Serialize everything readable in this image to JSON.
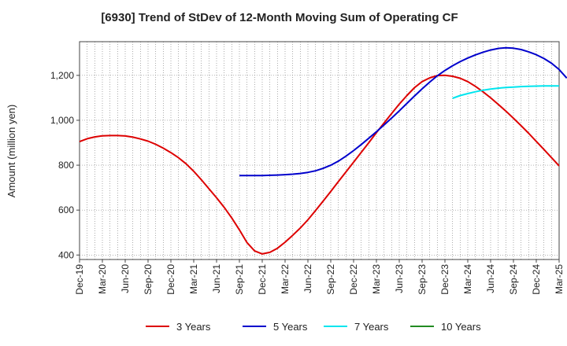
{
  "chart_data": {
    "type": "line",
    "title": "[6930]  Trend of StDev of 12-Month Moving Sum of Operating CF",
    "xlabel": "",
    "ylabel": "Amount (million yen)",
    "ylim": [
      380,
      1350
    ],
    "yticks": [
      400,
      600,
      800,
      1000,
      1200
    ],
    "ytick_labels": [
      "400",
      "600",
      "800",
      "1,000",
      "1,200"
    ],
    "x_start": "Dec-19",
    "x_end": "Mar-25",
    "xtick_labels": [
      "Dec-19",
      "Mar-20",
      "Jun-20",
      "Sep-20",
      "Dec-20",
      "Mar-21",
      "Jun-21",
      "Sep-21",
      "Dec-21",
      "Mar-22",
      "Jun-22",
      "Sep-22",
      "Dec-22",
      "Mar-23",
      "Jun-23",
      "Sep-23",
      "Dec-23",
      "Mar-24",
      "Jun-24",
      "Sep-24",
      "Dec-24",
      "Mar-25"
    ],
    "grid": true,
    "legend_position": "bottom",
    "series": [
      {
        "name": "3 Years",
        "color": "#dd0000",
        "start_index": 0,
        "values": [
          905,
          918,
          926,
          931,
          932,
          932,
          930,
          925,
          917,
          907,
          893,
          876,
          856,
          833,
          806,
          773,
          735,
          695,
          655,
          612,
          565,
          512,
          455,
          418,
          405,
          412,
          430,
          457,
          488,
          520,
          557,
          598,
          640,
          683,
          727,
          770,
          813,
          857,
          900,
          945,
          988,
          1030,
          1072,
          1110,
          1145,
          1172,
          1189,
          1199,
          1200,
          1196,
          1187,
          1172,
          1151,
          1127,
          1100,
          1071,
          1041,
          1009,
          976,
          942,
          906,
          870,
          834,
          797
        ]
      },
      {
        "name": "5 Years",
        "color": "#0000cc",
        "start_index": 21,
        "values": [
          754,
          754,
          754,
          754,
          755,
          756,
          758,
          760,
          763,
          768,
          775,
          786,
          800,
          818,
          840,
          865,
          892,
          920,
          949,
          979,
          1010,
          1042,
          1075,
          1108,
          1140,
          1170,
          1198,
          1222,
          1243,
          1261,
          1277,
          1291,
          1303,
          1313,
          1320,
          1323,
          1321,
          1315,
          1305,
          1292,
          1275,
          1254,
          1226,
          1188
        ]
      },
      {
        "name": "7 Years",
        "color": "#00e5ee",
        "start_index": 49,
        "values": [
          1098,
          1110,
          1119,
          1127,
          1134,
          1139,
          1143,
          1146,
          1148,
          1150,
          1151,
          1152,
          1153,
          1153,
          1153
        ]
      },
      {
        "name": "10 Years",
        "color": "#228b22",
        "start_index": 0,
        "values": []
      }
    ]
  }
}
